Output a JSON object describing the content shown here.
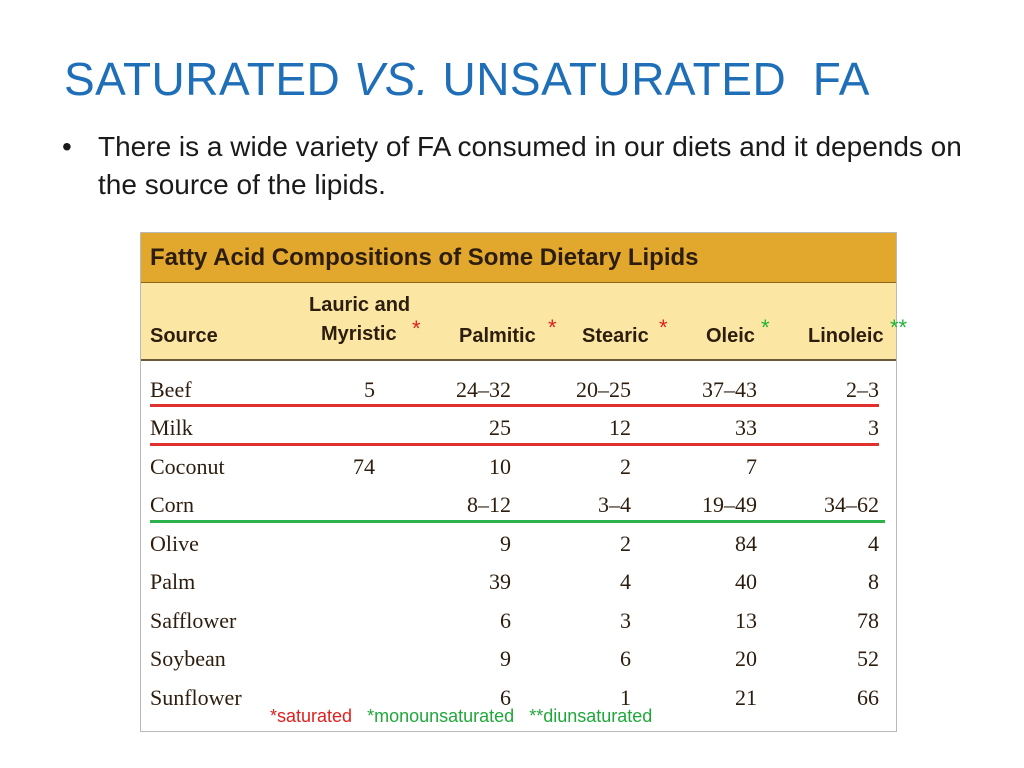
{
  "slide": {
    "title_part1": "SATURATED",
    "title_italic": "VS.",
    "title_part2": "UNSATURATED  FA",
    "bullet_symbol": "•",
    "bullet_text": "There is a wide variety of FA consumed in our diets and it depends on the source of the lipids."
  },
  "table": {
    "title": "Fatty Acid Compositions of Some Dietary Lipids",
    "headers": {
      "source": "Source",
      "lauric_line1": "Lauric and",
      "lauric_line2": "Myristic",
      "palmitic": "Palmitic",
      "stearic": "Stearic",
      "oleic": "Oleic",
      "linoleic": "Linoleic"
    },
    "marks": {
      "lauric": "*",
      "palmitic": "*",
      "stearic": "*",
      "oleic": "*",
      "linoleic": "**"
    },
    "rows": [
      {
        "source": "Beef",
        "lauric": "5",
        "palmitic": "24–32",
        "stearic": "20–25",
        "oleic": "37–43",
        "linoleic": "2–3"
      },
      {
        "source": "Milk",
        "lauric": "",
        "palmitic": "25",
        "stearic": "12",
        "oleic": "33",
        "linoleic": "3"
      },
      {
        "source": "Coconut",
        "lauric": "74",
        "palmitic": "10",
        "stearic": "2",
        "oleic": "7",
        "linoleic": ""
      },
      {
        "source": "Corn",
        "lauric": "",
        "palmitic": "8–12",
        "stearic": "3–4",
        "oleic": "19–49",
        "linoleic": "34–62"
      },
      {
        "source": "Olive",
        "lauric": "",
        "palmitic": "9",
        "stearic": "2",
        "oleic": "84",
        "linoleic": "4"
      },
      {
        "source": "Palm",
        "lauric": "",
        "palmitic": "39",
        "stearic": "4",
        "oleic": "40",
        "linoleic": "8"
      },
      {
        "source": "Safflower",
        "lauric": "",
        "palmitic": "6",
        "stearic": "3",
        "oleic": "13",
        "linoleic": "78"
      },
      {
        "source": "Soybean",
        "lauric": "",
        "palmitic": "9",
        "stearic": "6",
        "oleic": "20",
        "linoleic": "52"
      },
      {
        "source": "Sunflower",
        "lauric": "",
        "palmitic": "6",
        "stearic": "1",
        "oleic": "21",
        "linoleic": "66"
      }
    ]
  },
  "legend": {
    "saturated": "*saturated",
    "monounsaturated": "*monounsaturated",
    "diunsaturated": "**diunsaturated"
  },
  "colors": {
    "title_blue": "#1f6fb8",
    "saturated_red": "#e02020",
    "unsaturated_green": "#1fb23a",
    "table_header_gold": "#e2a72d",
    "column_header_cream": "#fbe7a3"
  }
}
